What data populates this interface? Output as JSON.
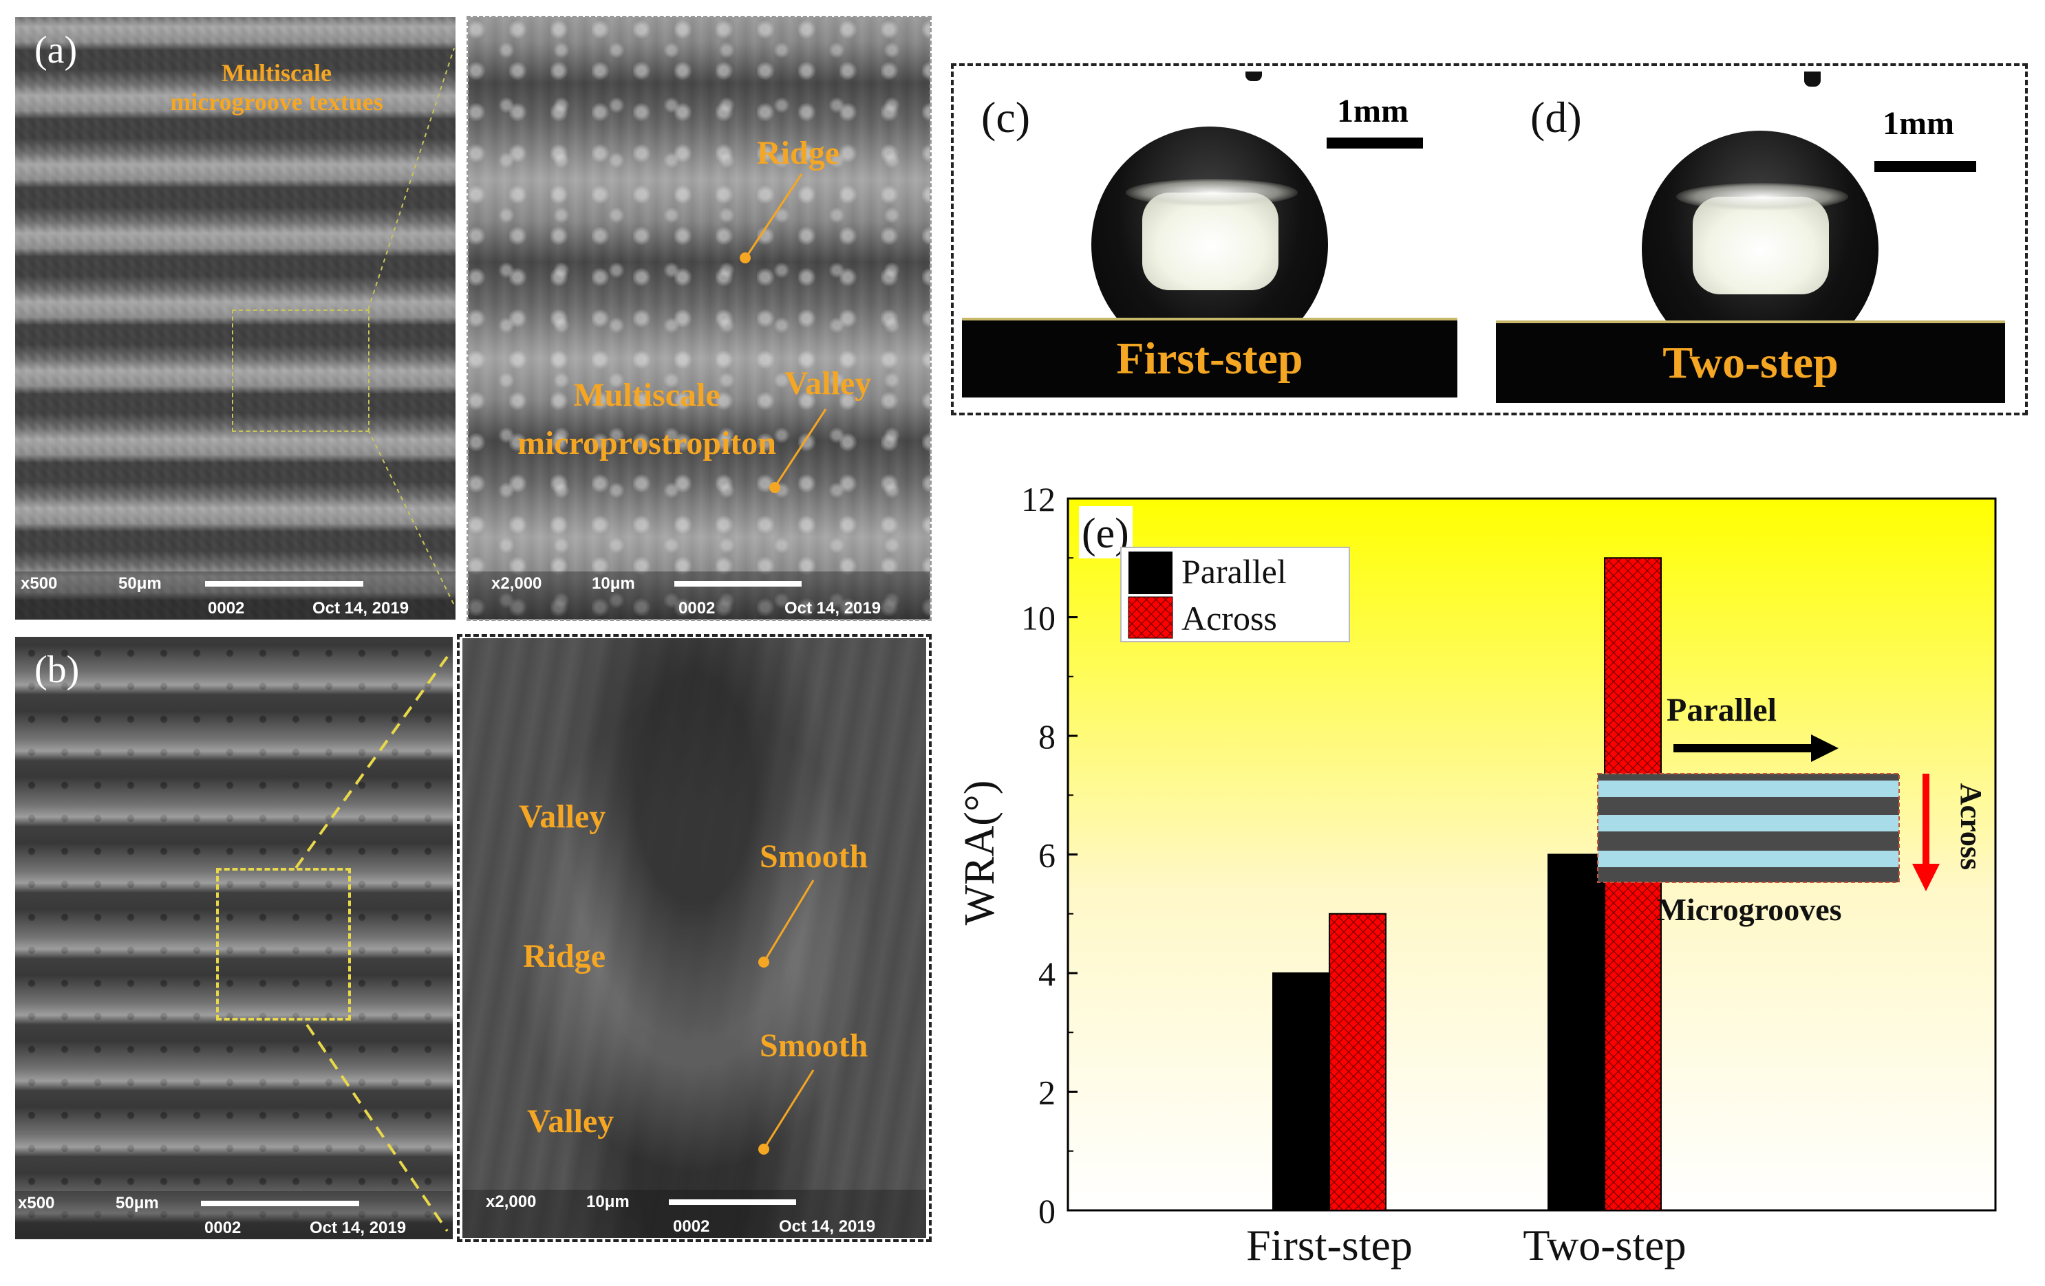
{
  "panels": {
    "a": {
      "label": "(a)",
      "title_line1": "Multiscale",
      "title_line2": "microgroove textues",
      "info": {
        "mag": "x500",
        "scale": "50μm",
        "id": "0002",
        "date": "Oct 14, 2019"
      }
    },
    "a_zoom": {
      "ridge": "Ridge",
      "valley": "Valley",
      "multi_line1": "Multiscale",
      "multi_line2": "microprostropiton",
      "info": {
        "mag": "x2,000",
        "scale": "10μm",
        "id": "0002",
        "date": "Oct 14, 2019"
      }
    },
    "b": {
      "label": "(b)",
      "info": {
        "mag": "x500",
        "scale": "50μm",
        "id": "0002",
        "date": "Oct 14, 2019"
      }
    },
    "b_zoom": {
      "valley_top": "Valley",
      "smooth_top": "Smooth",
      "ridge": "Ridge",
      "smooth_bottom": "Smooth",
      "valley_bottom": "Valley",
      "info": {
        "mag": "x2,000",
        "scale": "10μm",
        "id": "0002",
        "date": "Oct 14, 2019"
      }
    },
    "c": {
      "label": "(c)",
      "scale": "1mm",
      "step": "First-step"
    },
    "d": {
      "label": "(d)",
      "scale": "1mm",
      "step": "Two-step"
    }
  },
  "colors": {
    "annotation": "#f5a623",
    "parallel": "#000000",
    "across": "#ff0000",
    "groove_light": "#a8dce8",
    "groove_dark": "#4a4a4a"
  },
  "chart_data": {
    "type": "bar",
    "panel_label": "(e)",
    "categories": [
      "First-step",
      "Two-step"
    ],
    "series": [
      {
        "name": "Parallel",
        "values": [
          4,
          6
        ]
      },
      {
        "name": "Across",
        "values": [
          5,
          11
        ]
      }
    ],
    "ylabel": "WRA(°)",
    "xlabel": "",
    "ylim": [
      0,
      12
    ],
    "yticks": [
      0,
      2,
      4,
      6,
      8,
      10,
      12
    ],
    "legend_placement": "top-left",
    "inset": {
      "parallel_label": "Parallel",
      "across_label": "Across",
      "caption": "Microgrooves"
    }
  }
}
